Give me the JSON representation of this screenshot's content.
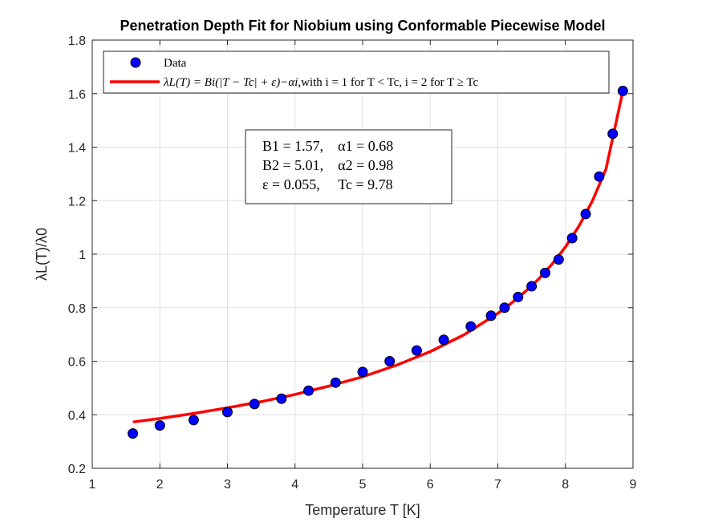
{
  "chart_data": {
    "type": "scatter",
    "title": "Penetration Depth Fit for Niobium using Conformable Piecewise Model",
    "xlabel": "Temperature T [K]",
    "ylabel": "λL(T)/λ0",
    "xlim": [
      1,
      9
    ],
    "ylim": [
      0.2,
      1.8
    ],
    "xticks": [
      1,
      2,
      3,
      4,
      5,
      6,
      7,
      8,
      9
    ],
    "yticks": [
      0.2,
      0.4,
      0.6,
      0.8,
      1,
      1.2,
      1.4,
      1.6,
      1.8
    ],
    "xtick_labels": [
      "1",
      "2",
      "3",
      "4",
      "5",
      "6",
      "7",
      "8",
      "9"
    ],
    "ytick_labels": [
      "0.2",
      "0.4",
      "0.6",
      "0.8",
      "1",
      "1.2",
      "1.4",
      "1.6",
      "1.8"
    ],
    "grid": true,
    "legend_position": "top",
    "colors": {
      "data_face": "#0000ff",
      "data_edge": "#000000",
      "fit_line": "#ff0000"
    },
    "series": [
      {
        "name": "Data",
        "kind": "scatter",
        "x": [
          1.6,
          2.0,
          2.5,
          3.0,
          3.4,
          3.8,
          4.2,
          4.6,
          5.0,
          5.4,
          5.8,
          6.2,
          6.6,
          6.9,
          7.1,
          7.3,
          7.5,
          7.7,
          7.9,
          8.1,
          8.3,
          8.5,
          8.7,
          8.85
        ],
        "y": [
          0.33,
          0.36,
          0.38,
          0.41,
          0.44,
          0.46,
          0.49,
          0.52,
          0.56,
          0.6,
          0.64,
          0.68,
          0.73,
          0.77,
          0.8,
          0.84,
          0.88,
          0.93,
          0.98,
          1.06,
          1.15,
          1.29,
          1.45,
          1.61
        ]
      },
      {
        "name": "fit",
        "kind": "line",
        "x": [
          1.6,
          2.0,
          2.5,
          3.0,
          3.5,
          4.0,
          4.5,
          5.0,
          5.5,
          6.0,
          6.5,
          7.0,
          7.2,
          7.4,
          7.6,
          7.8,
          8.0,
          8.2,
          8.4,
          8.6,
          8.85
        ],
        "y": [
          0.373,
          0.386,
          0.405,
          0.426,
          0.449,
          0.476,
          0.507,
          0.542,
          0.585,
          0.636,
          0.699,
          0.779,
          0.817,
          0.859,
          0.906,
          0.962,
          1.027,
          1.105,
          1.2,
          1.318,
          1.61
        ]
      }
    ],
    "legend": {
      "data_label": "Data",
      "fit_math": "λL(T) = Bi(|T − Tc| + ε)−αi",
      "fit_rest": ",with i = 1 for T < Tc, i = 2 for T ≥ Tc"
    },
    "annotation": {
      "lines": [
        "B1 = 1.57,    α1 = 0.68",
        "B2 = 5.01,    α2 = 0.98",
        "ε = 0.055,     Tc = 9.78"
      ]
    }
  }
}
